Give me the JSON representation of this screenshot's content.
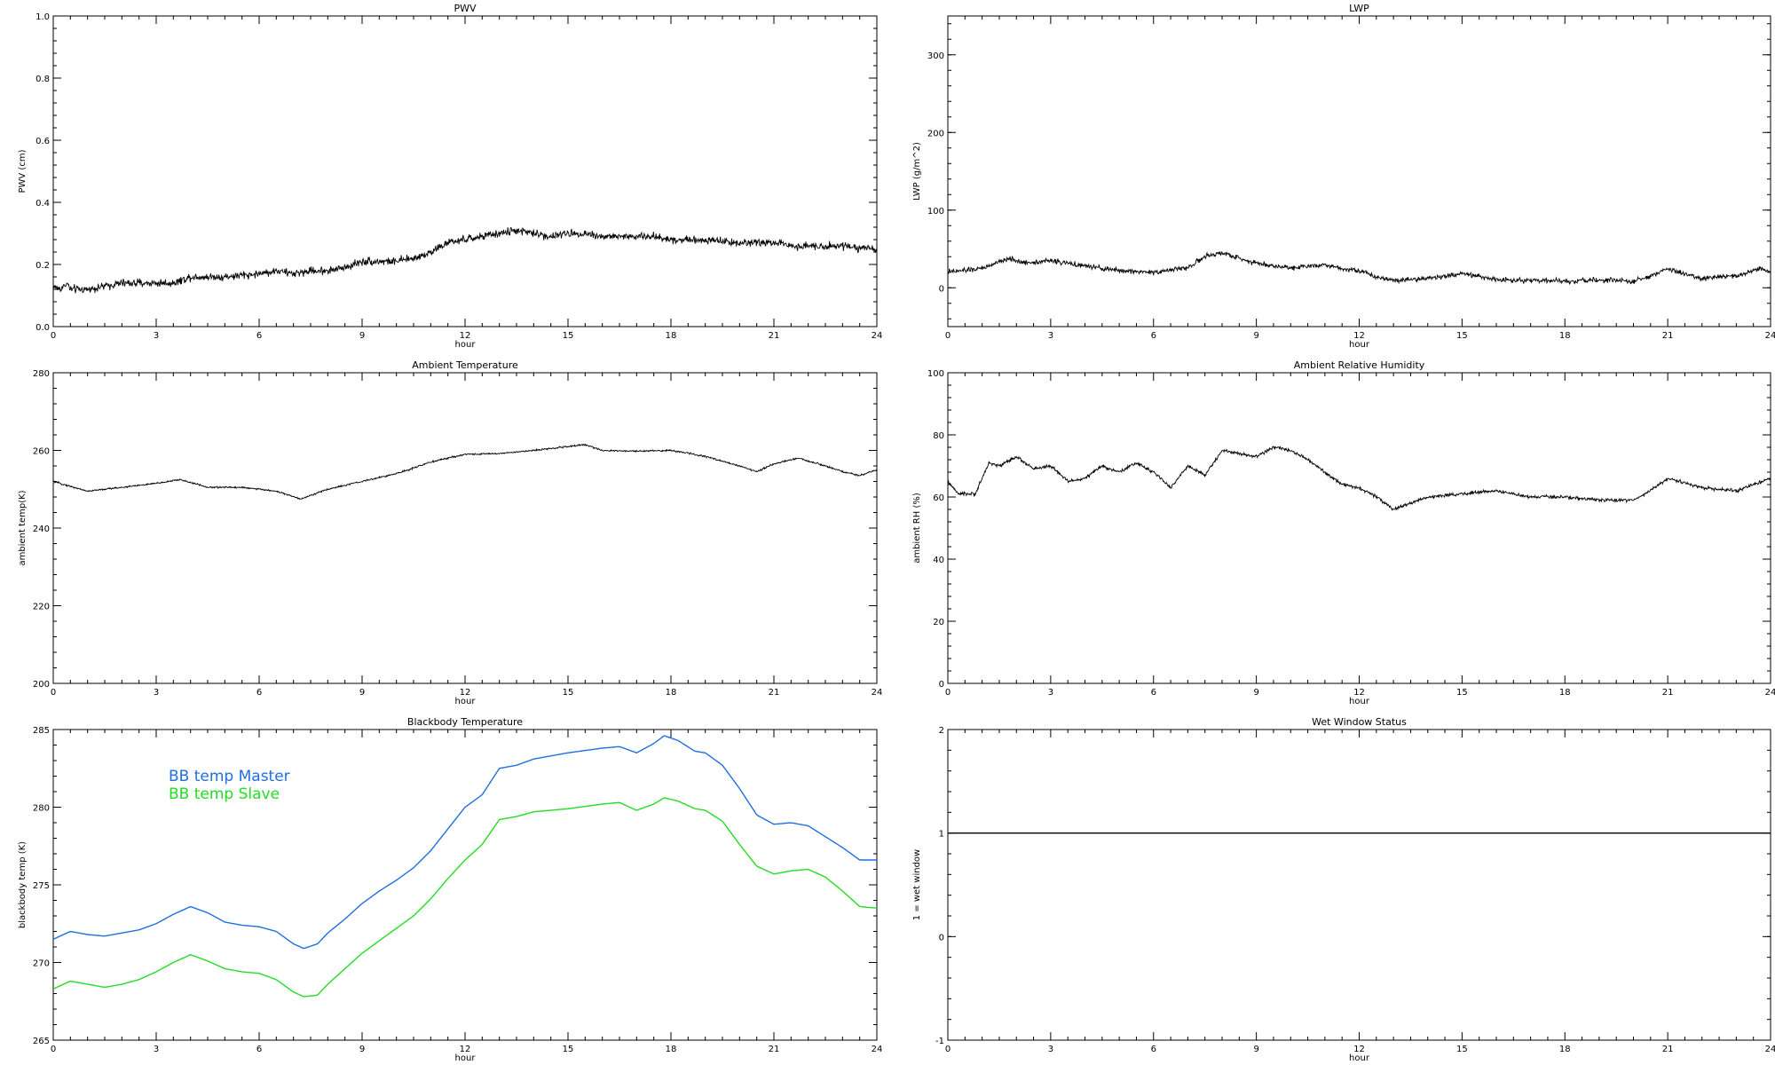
{
  "chart_data": [
    {
      "type": "line",
      "title": "PWV",
      "xlabel": "hour",
      "ylabel": "PWV (cm)",
      "xlim": [
        0,
        24
      ],
      "ylim": [
        0,
        1.0
      ],
      "xticks": [
        "0",
        "3",
        "6",
        "9",
        "12",
        "15",
        "18",
        "21",
        "24"
      ],
      "yticks": [
        "0.0",
        "0.2",
        "0.4",
        "0.6",
        "0.8",
        "1.0"
      ],
      "series": [
        {
          "color": "#000000",
          "noise": 0.012,
          "x": [
            0,
            0.2,
            0.4,
            0.5,
            1.0,
            1.5,
            2.0,
            2.5,
            3.0,
            3.5,
            4.0,
            5.0,
            6.0,
            6.5,
            7.0,
            7.5,
            8.0,
            8.5,
            9.0,
            9.5,
            10.0,
            10.5,
            11.0,
            11.5,
            12.0,
            12.5,
            13.0,
            13.5,
            14.0,
            14.5,
            15.0,
            15.5,
            16.0,
            17.0,
            17.5,
            18.0,
            19.0,
            20.0,
            21.0,
            21.5,
            22.0,
            23.0,
            24.0
          ],
          "y": [
            0.13,
            0.12,
            0.14,
            0.12,
            0.12,
            0.13,
            0.14,
            0.14,
            0.14,
            0.14,
            0.16,
            0.16,
            0.17,
            0.18,
            0.17,
            0.18,
            0.18,
            0.19,
            0.21,
            0.21,
            0.21,
            0.22,
            0.24,
            0.27,
            0.28,
            0.29,
            0.3,
            0.31,
            0.3,
            0.29,
            0.3,
            0.3,
            0.29,
            0.29,
            0.29,
            0.28,
            0.28,
            0.27,
            0.27,
            0.26,
            0.26,
            0.26,
            0.25
          ]
        }
      ]
    },
    {
      "type": "line",
      "title": "LWP",
      "xlabel": "hour",
      "ylabel": "LWP (g/m^2)",
      "xlim": [
        0,
        24
      ],
      "ylim": [
        -50,
        350
      ],
      "xticks": [
        "0",
        "3",
        "6",
        "9",
        "12",
        "15",
        "18",
        "21",
        "24"
      ],
      "yticks": [
        "0",
        "100",
        "200",
        "300"
      ],
      "series": [
        {
          "color": "#000000",
          "noise": 3,
          "x": [
            0,
            1.0,
            1.8,
            2.2,
            3.0,
            4.0,
            5.0,
            6.0,
            7.0,
            7.5,
            8.0,
            8.5,
            9.0,
            9.5,
            10.0,
            11.0,
            11.5,
            12.0,
            12.5,
            13.0,
            14.0,
            15.0,
            15.5,
            16.0,
            17.0,
            18.0,
            19.0,
            20.0,
            20.5,
            21.0,
            21.3,
            22.0,
            23.0,
            23.7,
            24.0
          ],
          "y": [
            20,
            25,
            38,
            32,
            35,
            28,
            22,
            20,
            26,
            40,
            45,
            38,
            32,
            28,
            26,
            30,
            25,
            22,
            14,
            10,
            12,
            18,
            15,
            10,
            10,
            8,
            10,
            8,
            15,
            25,
            20,
            12,
            15,
            25,
            20
          ]
        }
      ]
    },
    {
      "type": "line",
      "title": "Ambient Temperature",
      "xlabel": "hour",
      "ylabel": "ambient temp(K)",
      "xlim": [
        0,
        24
      ],
      "ylim": [
        200,
        280
      ],
      "xticks": [
        "0",
        "3",
        "6",
        "9",
        "12",
        "15",
        "18",
        "21",
        "24"
      ],
      "yticks": [
        "200",
        "220",
        "240",
        "260",
        "280"
      ],
      "series": [
        {
          "color": "#000000",
          "noise": 0.2,
          "x": [
            0,
            1.0,
            2.0,
            3.0,
            3.7,
            4.5,
            5.5,
            6.5,
            7.2,
            8.0,
            9.0,
            10.0,
            11.0,
            12.0,
            13.0,
            14.0,
            15.0,
            15.5,
            16.0,
            17.0,
            18.0,
            19.0,
            20.0,
            20.5,
            21.0,
            21.7,
            22.5,
            23.0,
            23.5,
            24.0
          ],
          "y": [
            252,
            249.5,
            250.5,
            251.5,
            252.5,
            250.5,
            250.5,
            249.5,
            247.5,
            250,
            252,
            254,
            257,
            259,
            259.2,
            260,
            261,
            261.5,
            260,
            259.8,
            260,
            258.5,
            256,
            254.5,
            256.5,
            258,
            256,
            254.5,
            253.5,
            255
          ]
        }
      ]
    },
    {
      "type": "line",
      "title": "Ambient Relative Humidity",
      "xlabel": "hour",
      "ylabel": "ambient RH (%)",
      "xlim": [
        0,
        24
      ],
      "ylim": [
        0,
        100
      ],
      "xticks": [
        "0",
        "3",
        "6",
        "9",
        "12",
        "15",
        "18",
        "21",
        "24"
      ],
      "yticks": [
        "0",
        "20",
        "40",
        "60",
        "80",
        "100"
      ],
      "series": [
        {
          "color": "#000000",
          "noise": 0.5,
          "x": [
            0,
            0.3,
            0.8,
            1.2,
            1.5,
            2.0,
            2.5,
            3.0,
            3.5,
            4.0,
            4.5,
            5.0,
            5.5,
            6.0,
            6.5,
            7.0,
            7.5,
            8.0,
            8.5,
            9.0,
            9.5,
            10.0,
            10.5,
            11.0,
            11.5,
            12.0,
            12.5,
            13.0,
            13.5,
            14.0,
            15.0,
            16.0,
            17.0,
            18.0,
            19.0,
            20.0,
            20.5,
            21.0,
            22.0,
            23.0,
            24.0
          ],
          "y": [
            65,
            61,
            61,
            71,
            70,
            73,
            69,
            70,
            65,
            66,
            70,
            68,
            71,
            68,
            63,
            70,
            67,
            75,
            74,
            73,
            76,
            75,
            72,
            68,
            64,
            63,
            60,
            56,
            58,
            60,
            61,
            62,
            60,
            60,
            59,
            59,
            62,
            66,
            63,
            62,
            66
          ]
        }
      ]
    },
    {
      "type": "line",
      "title": "Blackbody Temperature",
      "xlabel": "hour",
      "ylabel": "blackbody temp (K)",
      "xlim": [
        0,
        24
      ],
      "ylim": [
        265,
        285
      ],
      "xticks": [
        "0",
        "3",
        "6",
        "9",
        "12",
        "15",
        "18",
        "21",
        "24"
      ],
      "yticks": [
        "265",
        "270",
        "275",
        "280",
        "285"
      ],
      "legend": "top-left",
      "series": [
        {
          "name": "BB temp Master",
          "color": "#1f6fe0",
          "noise": 0,
          "x": [
            0,
            0.5,
            1.0,
            1.5,
            2.0,
            2.5,
            3.0,
            3.5,
            4.0,
            4.5,
            5.0,
            5.5,
            6.0,
            6.5,
            7.0,
            7.3,
            7.7,
            8.0,
            8.5,
            9.0,
            9.5,
            10.0,
            10.5,
            11.0,
            11.5,
            12.0,
            12.5,
            13.0,
            13.5,
            14.0,
            15.0,
            16.0,
            16.5,
            17.0,
            17.5,
            17.8,
            18.2,
            18.7,
            19.0,
            19.5,
            20.0,
            20.5,
            21.0,
            21.5,
            22.0,
            22.5,
            23.0,
            23.5,
            24.0
          ],
          "y": [
            271.5,
            272,
            271.8,
            271.7,
            271.9,
            272.1,
            272.5,
            273.1,
            273.6,
            273.2,
            272.6,
            272.4,
            272.3,
            272,
            271.2,
            270.9,
            271.2,
            271.9,
            272.8,
            273.8,
            274.6,
            275.3,
            276.1,
            277.2,
            278.6,
            280,
            280.8,
            282.5,
            282.7,
            283.1,
            283.5,
            283.8,
            283.9,
            283.5,
            284.1,
            284.6,
            284.3,
            283.6,
            283.5,
            282.7,
            281.2,
            279.5,
            278.9,
            279,
            278.8,
            278.1,
            277.4,
            276.6,
            276.6
          ]
        },
        {
          "name": "BB temp Slave",
          "color": "#22dd22",
          "noise": 0,
          "x": [
            0,
            0.5,
            1.0,
            1.5,
            2.0,
            2.5,
            3.0,
            3.5,
            4.0,
            4.5,
            5.0,
            5.5,
            6.0,
            6.5,
            7.0,
            7.3,
            7.7,
            8.0,
            8.5,
            9.0,
            9.5,
            10.0,
            10.5,
            11.0,
            11.5,
            12.0,
            12.5,
            13.0,
            13.5,
            14.0,
            15.0,
            16.0,
            16.5,
            17.0,
            17.5,
            17.8,
            18.2,
            18.7,
            19.0,
            19.5,
            20.0,
            20.5,
            21.0,
            21.5,
            22.0,
            22.5,
            23.0,
            23.5,
            24.0
          ],
          "y": [
            268.3,
            268.8,
            268.6,
            268.4,
            268.6,
            268.9,
            269.4,
            270,
            270.5,
            270.1,
            269.6,
            269.4,
            269.3,
            268.9,
            268.1,
            267.8,
            267.9,
            268.6,
            269.6,
            270.6,
            271.4,
            272.2,
            273,
            274.1,
            275.4,
            276.6,
            277.6,
            279.2,
            279.4,
            279.7,
            279.9,
            280.2,
            280.3,
            279.8,
            280.2,
            280.6,
            280.4,
            279.9,
            279.8,
            279.1,
            277.6,
            276.2,
            275.7,
            275.9,
            276,
            275.5,
            274.6,
            273.6,
            273.5
          ]
        }
      ]
    },
    {
      "type": "line",
      "title": "Wet Window Status",
      "xlabel": "hour",
      "ylabel": "1 = wet window",
      "xlim": [
        0,
        24
      ],
      "ylim": [
        -1,
        2
      ],
      "xticks": [
        "0",
        "3",
        "6",
        "9",
        "12",
        "15",
        "18",
        "21",
        "24"
      ],
      "yticks": [
        "-1",
        "0",
        "1",
        "2"
      ],
      "series": [
        {
          "color": "#000000",
          "noise": 0,
          "x": [
            0,
            24
          ],
          "y": [
            1,
            1
          ]
        }
      ]
    }
  ]
}
